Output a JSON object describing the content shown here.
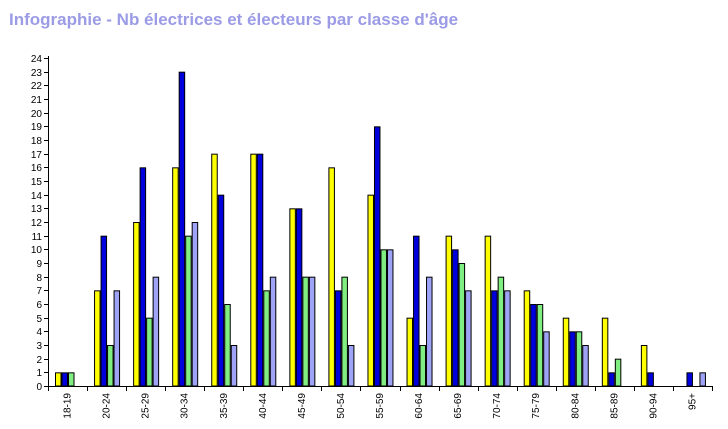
{
  "title": "Infographie - Nb électrices et électeurs par classe d'âge",
  "chart_data": {
    "type": "bar",
    "title": "Infographie - Nb électrices et électeurs par classe d'âge",
    "xlabel": "",
    "ylabel": "",
    "ylim": [
      0,
      24
    ],
    "yticks": [
      0,
      1,
      2,
      3,
      4,
      5,
      6,
      7,
      8,
      9,
      10,
      11,
      12,
      13,
      14,
      15,
      16,
      17,
      18,
      19,
      20,
      21,
      22,
      23,
      24
    ],
    "grid": false,
    "categories": [
      "18-19",
      "20-24",
      "25-29",
      "30-34",
      "35-39",
      "40-44",
      "45-49",
      "50-54",
      "55-59",
      "60-64",
      "65-69",
      "70-74",
      "75-79",
      "80-84",
      "85-89",
      "90-94",
      "95+"
    ],
    "series": [
      {
        "color": "#ffff00",
        "values": [
          1,
          7,
          12,
          16,
          17,
          17,
          13,
          16,
          14,
          5,
          11,
          11,
          7,
          5,
          5,
          3,
          0
        ]
      },
      {
        "color": "#0000dd",
        "values": [
          1,
          11,
          16,
          23,
          14,
          17,
          13,
          7,
          19,
          11,
          10,
          7,
          6,
          4,
          1,
          1,
          1
        ]
      },
      {
        "color": "#80ee80",
        "values": [
          1,
          3,
          5,
          11,
          6,
          7,
          8,
          8,
          10,
          3,
          9,
          8,
          6,
          4,
          2,
          0,
          0
        ]
      },
      {
        "color": "#9fa3f5",
        "values": [
          0,
          7,
          8,
          12,
          3,
          8,
          8,
          3,
          10,
          8,
          7,
          7,
          4,
          3,
          0,
          0,
          1
        ]
      }
    ]
  }
}
